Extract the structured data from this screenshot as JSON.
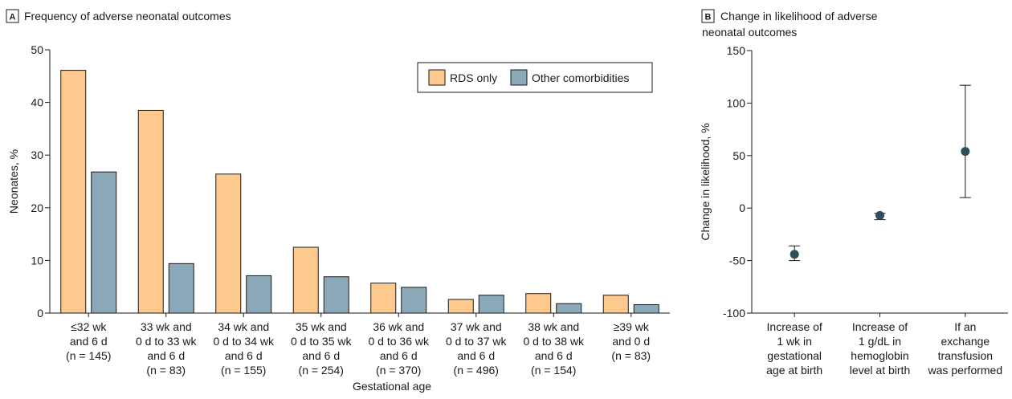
{
  "chart_data": [
    {
      "panel_letter": "A",
      "type": "bar",
      "title": "Frequency of adverse neonatal outcomes",
      "xlabel": "Gestational age",
      "ylabel": "Neonates, %",
      "ylim": [
        0,
        50
      ],
      "yticks": [
        0,
        10,
        20,
        30,
        40,
        50
      ],
      "grid": false,
      "legend_position": "top-right",
      "categories": [
        [
          "≤32 wk",
          "and 6 d",
          "(n = 145)"
        ],
        [
          "33 wk and",
          "0 d to 33 wk",
          "and 6 d",
          "(n = 83)"
        ],
        [
          "34 wk and",
          "0 d to 34 wk",
          "and 6 d",
          "(n = 155)"
        ],
        [
          "35 wk and",
          "0 d to 35 wk",
          "and 6 d",
          "(n = 254)"
        ],
        [
          "36 wk and",
          "0 d to 36 wk",
          "and 6 d",
          "(n = 370)"
        ],
        [
          "37 wk and",
          "0 d to 37 wk",
          "and 6 d",
          "(n = 496)"
        ],
        [
          "38 wk and",
          "0 d to 38 wk",
          "and 6 d",
          "(n = 154)"
        ],
        [
          "≥39 wk",
          "and 0 d",
          "(n = 83)"
        ]
      ],
      "series": [
        {
          "name": "RDS only",
          "color": "#fdc98e",
          "values": [
            46.1,
            38.5,
            26.4,
            12.5,
            5.7,
            2.6,
            3.7,
            3.4
          ]
        },
        {
          "name": "Other comorbidities",
          "color": "#8aa8b7",
          "values": [
            26.8,
            9.4,
            7.1,
            6.9,
            4.9,
            3.4,
            1.8,
            1.6
          ]
        }
      ]
    },
    {
      "panel_letter": "B",
      "type": "scatter",
      "title": "Change in likelihood of adverse neonatal outcomes",
      "title_lines": [
        "Change in likelihood of adverse",
        "neonatal outcomes"
      ],
      "ylabel": "Change in likelihood, %",
      "ylim": [
        -100,
        150
      ],
      "yticks": [
        -100,
        -50,
        0,
        50,
        100,
        150
      ],
      "grid": false,
      "marker_color": "#2e4e5e",
      "categories": [
        [
          "Increase of",
          "1 wk in",
          "gestational",
          "age at birth"
        ],
        [
          "Increase of",
          "1 g/dL in",
          "hemoglobin",
          "level at birth"
        ],
        [
          "If an",
          "exchange",
          "transfusion",
          "was performed"
        ]
      ],
      "points": [
        {
          "estimate": -44,
          "ci_low": -50,
          "ci_high": -36
        },
        {
          "estimate": -7,
          "ci_low": -11,
          "ci_high": -5
        },
        {
          "estimate": 54,
          "ci_low": 10,
          "ci_high": 117
        }
      ]
    }
  ]
}
